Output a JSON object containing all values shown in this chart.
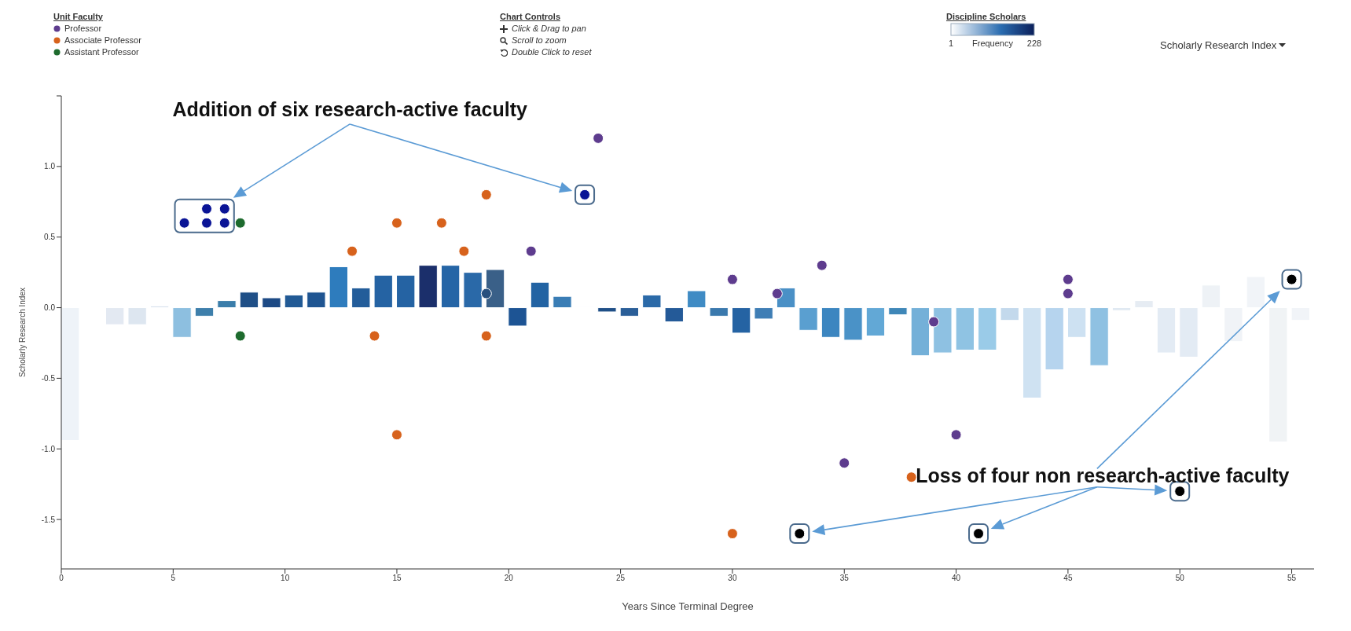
{
  "chart_data": {
    "type": "bar",
    "xlabel": "Years Since Terminal Degree",
    "ylabel": "Scholarly Research Index",
    "legend_title": "Unit Faculty",
    "clabel": "Discipline Scholars",
    "clim": [
      1,
      228
    ],
    "cticks": [
      1,
      228
    ],
    "xlim": [
      0,
      56
    ],
    "xticks": [
      0,
      5,
      10,
      15,
      20,
      25,
      30,
      35,
      40,
      45,
      50,
      55
    ],
    "ylim": [
      -1.85,
      1.5
    ],
    "yticks": [
      {
        "value": 1.5,
        "label": null
      },
      {
        "value": 1,
        "label": "1.0"
      },
      0.5,
      {
        "value": 0,
        "label": "0.0"
      },
      -0.5,
      {
        "value": -1,
        "label": "-1.0"
      },
      -1.5
    ],
    "grid": false,
    "legend": "top left",
    "marker": "circle",
    "series": [
      {
        "x": [
          0.4,
          2.4,
          3.4,
          4.4,
          5.4,
          6.4,
          7.4,
          8.4,
          9.4,
          10.4,
          11.4,
          12.4,
          13.4,
          14.4,
          15.4,
          16.4,
          17.4,
          18.4,
          19.4,
          20.4,
          21.4,
          22.4,
          23.4,
          24.4,
          25.4,
          26.4,
          27.4,
          28.4,
          29.4,
          30.4,
          31.4,
          32.4,
          33.4,
          34.4,
          35.4,
          36.4,
          37.4,
          38.4,
          39.4,
          40.4,
          41.4,
          42.4,
          43.4,
          44.4,
          45.4,
          46.4,
          47.4,
          48.4,
          49.4,
          50.4,
          51.4,
          52.4,
          53.4,
          54.4,
          55.4
        ],
        "values": [
          -0.94,
          -0.12,
          -0.12,
          0.01,
          -0.21,
          -0.06,
          0.05,
          0.11,
          0.07,
          0.09,
          0.11,
          0.29,
          0.14,
          0.23,
          0.23,
          0.3,
          0.3,
          0.25,
          0.27,
          -0.13,
          0.18,
          0.08,
          0.005,
          -0.03,
          -0.06,
          0.09,
          -0.1,
          0.12,
          -0.06,
          -0.18,
          -0.08,
          0.14,
          -0.16,
          -0.21,
          -0.23,
          -0.2,
          -0.05,
          -0.34,
          -0.32,
          -0.3,
          -0.3,
          -0.09,
          -0.64,
          -0.44,
          -0.21,
          -0.41,
          -0.02,
          0.05,
          -0.32,
          -0.35,
          0.16,
          -0.24,
          0.22,
          -0.95,
          -0.09
        ],
        "colors": [
          "#eef3f8",
          "#e3e9f2",
          "#dde6f0",
          "#c9d6e6",
          "#8dbfe0",
          "#3e7fab",
          "#3a7daa",
          "#1f4f87",
          "#1d4a85",
          "#225a95",
          "#1f5592",
          "#2e7cbd",
          "#235d9a",
          "#2563a3",
          "#2563a3",
          "#1b2f6b",
          "#2565a6",
          "#2a69a8",
          "#3a6088",
          "#1d5494",
          "#2263a3",
          "#3a7db5",
          "#e0e8f0",
          "#1f4f87",
          "#2a5e98",
          "#2b6aa8",
          "#245a98",
          "#3f8bc4",
          "#3a79ad",
          "#2563a3",
          "#3f7eb5",
          "#4a90c6",
          "#5a9fd0",
          "#3c86c0",
          "#4a92c7",
          "#62a8d6",
          "#3f87b8",
          "#74b0d8",
          "#8ec1e2",
          "#8fc3e3",
          "#9acbe8",
          "#c3d9ec",
          "#cfe2f2",
          "#b6d4ee",
          "#cde1f2",
          "#8fc1e2",
          "#dfe8f2",
          "#e6ecf3",
          "#e3ebf4",
          "#e3ebf4",
          "#eef2f6",
          "#f0f3f7",
          "#f1f4f8",
          "#f0f3f5",
          "#f1f4f8"
        ]
      },
      {
        "type": "scatter",
        "name": "Professor",
        "color": "#5e3c8e",
        "x": [
          21,
          24,
          30,
          32,
          34,
          39,
          35,
          40,
          45,
          45
        ],
        "values": [
          0.4,
          1.2,
          0.2,
          0.1,
          0.3,
          -0.1,
          -1.1,
          -0.9,
          0.2,
          0.1
        ]
      },
      {
        "type": "scatter",
        "name": "Associate Professor",
        "color": "#d7621c",
        "x": [
          13,
          14,
          15,
          15,
          17,
          18,
          19,
          19,
          30,
          38
        ],
        "values": [
          0.4,
          -0.2,
          0.6,
          -0.9,
          0.6,
          0.4,
          0.8,
          -0.2,
          -1.6,
          -1.2
        ]
      },
      {
        "type": "scatter",
        "name": "Assistant Professor",
        "color": "#1e6b2e",
        "x": [
          8,
          8
        ],
        "values": [
          0.6,
          -0.2
        ]
      },
      {
        "type": "scatter",
        "color": "#0a1496",
        "x": [
          5.5,
          6.5,
          7.3,
          6.5,
          7.3,
          23.4
        ],
        "values": [
          0.6,
          0.7,
          0.7,
          0.6,
          0.6,
          0.8
        ]
      },
      {
        "type": "scatter",
        "color": "#000000",
        "x": [
          33,
          41,
          50,
          55
        ],
        "values": [
          -1.6,
          -1.6,
          -1.3,
          0.2
        ]
      },
      {
        "type": "scatter",
        "color": "#28507e",
        "x": [
          19
        ],
        "values": [
          0.1
        ]
      }
    ],
    "annotations": [
      "Addition of six research-active faculty",
      "Loss of four non research-active faculty",
      "Chart Controls",
      "Click & Drag to pan",
      "Scroll to zoom",
      "Double Click to reset",
      "Frequency",
      "Scholarly Research Index"
    ]
  }
}
